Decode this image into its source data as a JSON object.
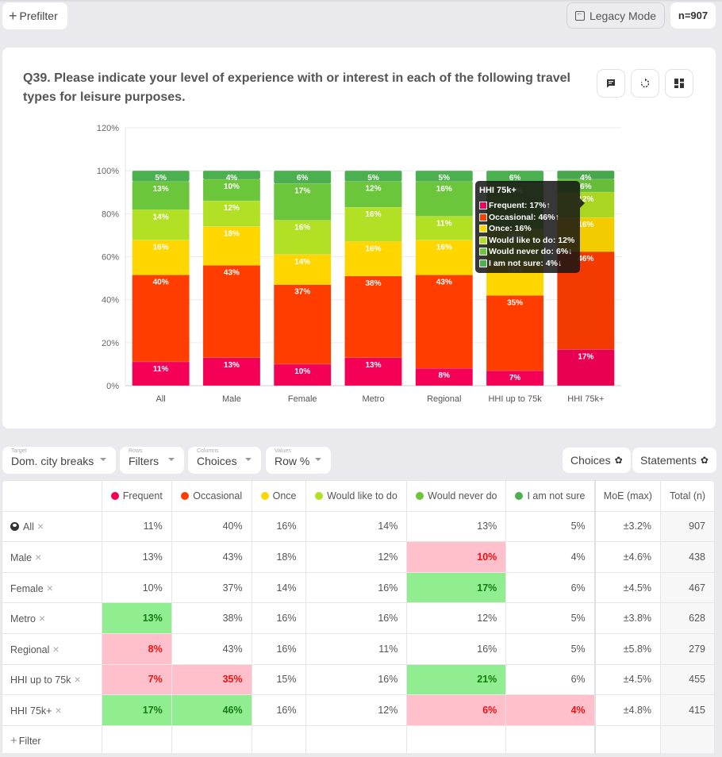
{
  "topbar": {
    "prefilter_label": "Prefilter",
    "legacy_label": "Legacy Mode",
    "n_label": "n=907"
  },
  "card": {
    "title": "Q39. Please indicate your level of experience with or interest in each of the following travel types for leisure purposes.",
    "icons": [
      "comment-icon",
      "refresh-icon",
      "dashboard-icon"
    ]
  },
  "chart_data": {
    "type": "bar",
    "stacked": true,
    "title": "Q39. Please indicate your level of experience with or interest in each of the following travel types for leisure purposes.",
    "xlabel": "",
    "ylabel": "",
    "ylim": [
      0,
      120
    ],
    "yticks": [
      0,
      20,
      40,
      60,
      80,
      100,
      120
    ],
    "ytick_labels": [
      "0%",
      "20%",
      "40%",
      "60%",
      "80%",
      "100%",
      "120%"
    ],
    "grid": true,
    "categories": [
      "All",
      "Male",
      "Female",
      "Metro",
      "Regional",
      "HHI up to 75k",
      "HHI 75k+"
    ],
    "series": [
      {
        "name": "Frequent",
        "color": "#f50057",
        "values": [
          11,
          13,
          10,
          13,
          8,
          7,
          17
        ]
      },
      {
        "name": "Occasional",
        "color": "#ff3d00",
        "values": [
          40,
          43,
          37,
          38,
          43,
          35,
          46
        ]
      },
      {
        "name": "Once",
        "color": "#ffd600",
        "values": [
          16,
          18,
          14,
          16,
          16,
          15,
          16
        ]
      },
      {
        "name": "Would like to do",
        "color": "#b2e024",
        "values": [
          14,
          12,
          16,
          16,
          11,
          16,
          12
        ]
      },
      {
        "name": "Would never do",
        "color": "#6cc63c",
        "values": [
          13,
          10,
          17,
          12,
          16,
          21,
          6
        ]
      },
      {
        "name": "I am not sure",
        "color": "#4caf50",
        "values": [
          5,
          4,
          6,
          5,
          5,
          6,
          4
        ]
      }
    ],
    "highlighted_category": "HHI 75k+",
    "tooltip": {
      "title": "HHI 75k+",
      "rows": [
        {
          "label": "Frequent: 17%",
          "sig": "up",
          "color": "#f50057"
        },
        {
          "label": "Occasional: 46%",
          "sig": "up",
          "color": "#ff3d00"
        },
        {
          "label": "Once: 16%",
          "sig": "",
          "color": "#ffd600"
        },
        {
          "label": "Would like to do: 12%",
          "sig": "",
          "color": "#b2e024"
        },
        {
          "label": "Would never do: 6%",
          "sig": "down",
          "color": "#6cc63c"
        },
        {
          "label": "I am not sure: 4%",
          "sig": "down",
          "color": "#4caf50"
        }
      ]
    }
  },
  "controls": {
    "target": {
      "caption": "Target",
      "value": "Dom. city breaks"
    },
    "rows": {
      "caption": "Rows",
      "value": "Filters"
    },
    "columns": {
      "caption": "Columns",
      "value": "Choices"
    },
    "values": {
      "caption": "Values",
      "value": "Row %"
    },
    "choices_button": "Choices",
    "statements_button": "Statements"
  },
  "table": {
    "headers": [
      {
        "label": "Frequent",
        "color": "#f50057"
      },
      {
        "label": "Occasional",
        "color": "#ff3d00"
      },
      {
        "label": "Once",
        "color": "#ffd600"
      },
      {
        "label": "Would like to do",
        "color": "#b2e024"
      },
      {
        "label": "Would never do",
        "color": "#6cc63c"
      },
      {
        "label": "I am not sure",
        "color": "#4caf50"
      },
      {
        "label": "MoE (max)"
      },
      {
        "label": "Total (n)"
      }
    ],
    "rows": [
      {
        "label": "All",
        "icon": "globe-icon",
        "cells": [
          "11%",
          "40%",
          "16%",
          "14%",
          "13%",
          "5%"
        ],
        "sig": [
          "",
          "",
          "",
          "",
          "",
          ""
        ],
        "moe": "±3.2%",
        "total": "907"
      },
      {
        "label": "Male",
        "cells": [
          "13%",
          "43%",
          "18%",
          "12%",
          "10%",
          "4%"
        ],
        "sig": [
          "",
          "",
          "",
          "",
          "lo",
          ""
        ],
        "moe": "±4.6%",
        "total": "438"
      },
      {
        "label": "Female",
        "cells": [
          "10%",
          "37%",
          "14%",
          "16%",
          "17%",
          "6%"
        ],
        "sig": [
          "",
          "",
          "",
          "",
          "hi",
          ""
        ],
        "moe": "±4.5%",
        "total": "467"
      },
      {
        "label": "Metro",
        "cells": [
          "13%",
          "38%",
          "16%",
          "16%",
          "12%",
          "5%"
        ],
        "sig": [
          "hi",
          "",
          "",
          "",
          "",
          ""
        ],
        "moe": "±3.8%",
        "total": "628"
      },
      {
        "label": "Regional",
        "cells": [
          "8%",
          "43%",
          "16%",
          "11%",
          "16%",
          "5%"
        ],
        "sig": [
          "lo",
          "",
          "",
          "",
          "",
          ""
        ],
        "moe": "±5.8%",
        "total": "279"
      },
      {
        "label": "HHI up to 75k",
        "cells": [
          "7%",
          "35%",
          "15%",
          "16%",
          "21%",
          "6%"
        ],
        "sig": [
          "lo",
          "lo",
          "",
          "",
          "hi",
          ""
        ],
        "moe": "±4.5%",
        "total": "455"
      },
      {
        "label": "HHI 75k+",
        "cells": [
          "17%",
          "46%",
          "16%",
          "12%",
          "6%",
          "4%"
        ],
        "sig": [
          "hi",
          "hi",
          "",
          "",
          "lo",
          "lo"
        ],
        "moe": "±4.8%",
        "total": "415"
      }
    ],
    "add_filter_label": "Filter"
  }
}
